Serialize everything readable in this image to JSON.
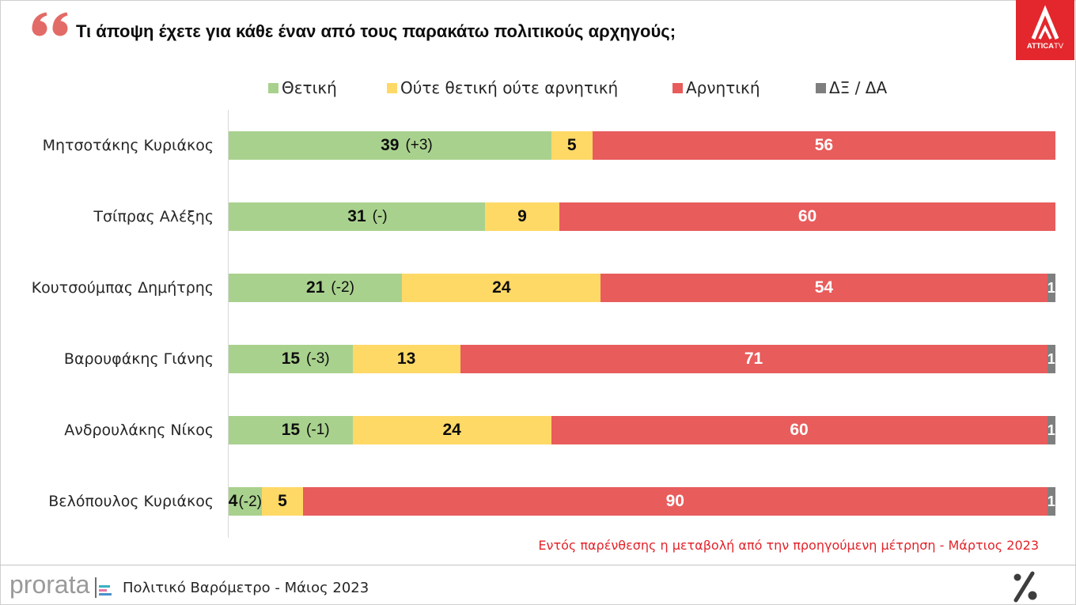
{
  "header": {
    "logo_text_bold": "ATTICA",
    "logo_text_light": "TV"
  },
  "chart_data": {
    "type": "bar",
    "orientation": "horizontal",
    "stacked": true,
    "title": "Τι άποψη έχετε για κάθε έναν από τους παρακάτω πολιτικούς αρχηγούς;",
    "xlim": [
      0,
      100
    ],
    "grid": false,
    "legend": "top",
    "categories": [
      "Μητσοτάκης Κυριάκος",
      "Τσίπρας Αλέξης",
      "Κουτσούμπας Δημήτρης",
      "Βαρουφάκης Γιάνης",
      "Ανδρουλάκης Νίκος",
      "Βελόπουλος Κυριάκος"
    ],
    "series": [
      {
        "name": "Θετική",
        "color": "#a9d18e",
        "values": [
          39,
          31,
          21,
          15,
          15,
          4
        ],
        "change": [
          "(+3)",
          "(-)",
          "(-2)",
          "(-3)",
          "(-1)",
          "(-2)"
        ]
      },
      {
        "name": "Ούτε θετική ούτε αρνητική",
        "color": "#ffd966",
        "values": [
          5,
          9,
          24,
          13,
          24,
          5
        ]
      },
      {
        "name": "Αρνητική",
        "color": "#e85c5c",
        "values": [
          56,
          60,
          54,
          71,
          60,
          90
        ]
      },
      {
        "name": "ΔΞ / ΔΑ",
        "color": "#7f7f7f",
        "values": [
          null,
          null,
          1,
          1,
          1,
          1
        ]
      }
    ],
    "annotations": [
      "Εντός παρένθεσης η μεταβολή από την προηγούμενη μέτρηση - Μάρτιος 2023"
    ]
  },
  "footer": {
    "brand": "prorata",
    "caption": "Πολιτικό Βαρόμετρο - Μάιος 2023"
  },
  "colors": {
    "channel_logo_red": "#e3272d",
    "quote_mark": "#e26b67",
    "note_text": "#e3232a"
  },
  "icons": {
    "quote": "quote-icon",
    "channel_logo": "attica-tv-logo-icon",
    "brand_mark": "prorata-bars-icon",
    "percent_logo": "percent-logo-icon"
  }
}
